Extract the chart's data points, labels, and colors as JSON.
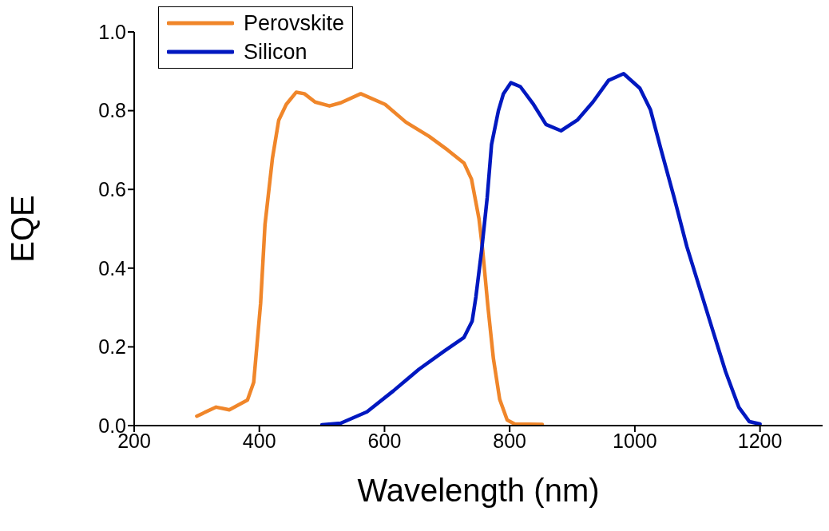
{
  "chart_data": {
    "type": "line",
    "xlabel": "Wavelength (nm)",
    "ylabel": "EQE",
    "xlim": [
      200,
      1300
    ],
    "xticks": [
      200,
      400,
      600,
      800,
      1000,
      1200
    ],
    "ylim": [
      0,
      1.0
    ],
    "yticks": [
      {
        "value": 0,
        "label": "0.0"
      },
      {
        "value": 0.2,
        "label": "0.2"
      },
      {
        "value": 0.4,
        "label": "0.4"
      },
      {
        "value": 0.6,
        "label": "0.6"
      },
      {
        "value": 0.8,
        "label": "0.8"
      },
      {
        "value": 1.0,
        "label": "1.0"
      }
    ],
    "grid": false,
    "legend": "top left",
    "marker": "none",
    "line_style": "solid",
    "series": [
      {
        "name": "Perovskite",
        "color": "#f0862a",
        "x": [
          300,
          331,
          352,
          381,
          391,
          402,
          409,
          421,
          431,
          443,
          459,
          472,
          489,
          512,
          530,
          562,
          601,
          634,
          671,
          701,
          727,
          739,
          751,
          757,
          765,
          774,
          784,
          796,
          808,
          852
        ],
        "values": [
          0.024,
          0.047,
          0.04,
          0.065,
          0.11,
          0.31,
          0.51,
          0.68,
          0.776,
          0.816,
          0.847,
          0.843,
          0.822,
          0.812,
          0.82,
          0.843,
          0.816,
          0.771,
          0.735,
          0.7,
          0.667,
          0.626,
          0.525,
          0.443,
          0.306,
          0.17,
          0.067,
          0.014,
          0.004,
          0.003
        ]
      },
      {
        "name": "Silicon",
        "color": "#0018c0",
        "x": [
          500,
          530,
          572,
          614,
          655,
          696,
          727,
          740,
          746,
          755,
          764,
          771,
          782,
          790,
          802,
          817,
          838,
          858,
          882,
          908,
          933,
          958,
          982,
          1008,
          1025,
          1042,
          1063,
          1083,
          1104,
          1125,
          1145,
          1166,
          1183,
          1200
        ],
        "values": [
          0.002,
          0.006,
          0.035,
          0.088,
          0.143,
          0.19,
          0.224,
          0.265,
          0.327,
          0.443,
          0.578,
          0.714,
          0.8,
          0.843,
          0.871,
          0.861,
          0.816,
          0.765,
          0.749,
          0.776,
          0.822,
          0.877,
          0.894,
          0.857,
          0.802,
          0.7,
          0.578,
          0.455,
          0.347,
          0.239,
          0.137,
          0.047,
          0.01,
          0.004
        ]
      }
    ]
  }
}
